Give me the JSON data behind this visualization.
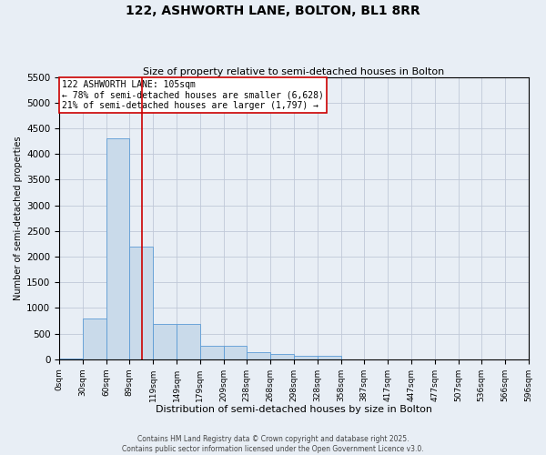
{
  "title": "122, ASHWORTH LANE, BOLTON, BL1 8RR",
  "subtitle": "Size of property relative to semi-detached houses in Bolton",
  "xlabel": "Distribution of semi-detached houses by size in Bolton",
  "ylabel": "Number of semi-detached properties",
  "annotation_title": "122 ASHWORTH LANE: 105sqm",
  "annotation_line1": "← 78% of semi-detached houses are smaller (6,628)",
  "annotation_line2": "21% of semi-detached houses are larger (1,797) →",
  "footer_line1": "Contains HM Land Registry data © Crown copyright and database right 2025.",
  "footer_line2": "Contains public sector information licensed under the Open Government Licence v3.0.",
  "property_size": 105,
  "bin_edges": [
    0,
    30,
    60,
    89,
    119,
    149,
    179,
    209,
    238,
    268,
    298,
    328,
    358,
    387,
    417,
    447,
    477,
    507,
    536,
    566,
    596
  ],
  "bin_labels": [
    "0sqm",
    "30sqm",
    "60sqm",
    "89sqm",
    "119sqm",
    "149sqm",
    "179sqm",
    "209sqm",
    "238sqm",
    "268sqm",
    "298sqm",
    "328sqm",
    "358sqm",
    "387sqm",
    "417sqm",
    "447sqm",
    "477sqm",
    "507sqm",
    "536sqm",
    "566sqm",
    "596sqm"
  ],
  "bar_values": [
    5,
    800,
    4300,
    2200,
    680,
    680,
    270,
    270,
    140,
    100,
    70,
    70,
    0,
    0,
    0,
    0,
    0,
    0,
    0,
    0
  ],
  "bar_color": "#c9daea",
  "bar_edgecolor": "#5b9bd5",
  "vline_color": "#cc0000",
  "vline_x": 105,
  "grid_color": "#c0c8d8",
  "background_color": "#e8eef5",
  "ylim": [
    0,
    5500
  ],
  "yticks": [
    0,
    500,
    1000,
    1500,
    2000,
    2500,
    3000,
    3500,
    4000,
    4500,
    5000,
    5500
  ],
  "annotation_box_color": "#ffffff",
  "annotation_border_color": "#cc0000",
  "title_fontsize": 10,
  "subtitle_fontsize": 8,
  "ylabel_fontsize": 7,
  "xlabel_fontsize": 8,
  "ytick_fontsize": 7.5,
  "xtick_fontsize": 6.5,
  "annotation_fontsize": 7,
  "footer_fontsize": 5.5
}
